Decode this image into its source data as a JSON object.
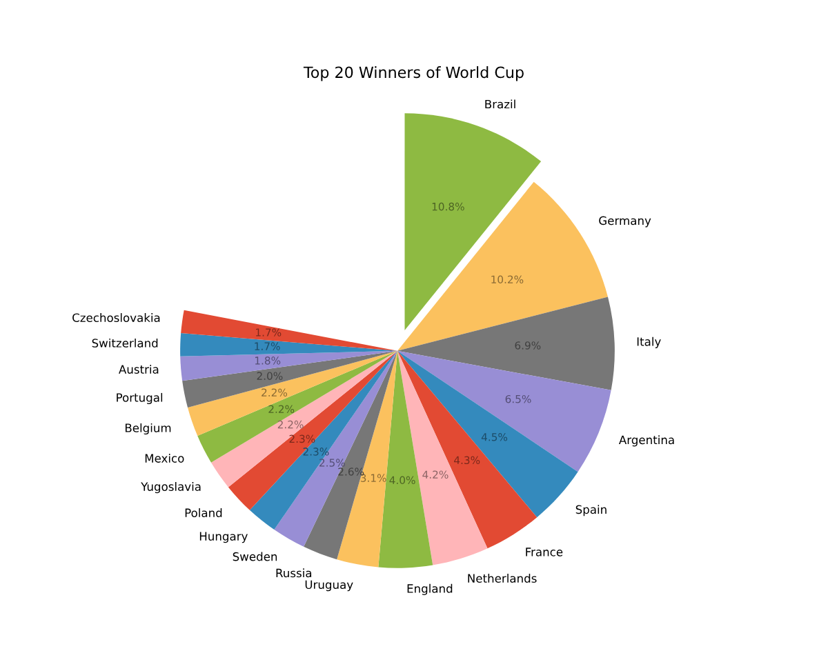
{
  "chart_data": {
    "type": "pie",
    "title": "Top 20 Winners of World Cup",
    "categories": [
      "Brazil",
      "Germany",
      "Italy",
      "Argentina",
      "Spain",
      "France",
      "Netherlands",
      "England",
      "Uruguay",
      "Russia",
      "Sweden",
      "Hungary",
      "Poland",
      "Yugoslavia",
      "Mexico",
      "Belgium",
      "Portugal",
      "Austria",
      "Switzerland",
      "Czechoslovakia"
    ],
    "values": [
      10.8,
      10.2,
      6.9,
      6.5,
      4.5,
      4.3,
      4.2,
      4.0,
      3.1,
      2.6,
      2.5,
      2.3,
      2.3,
      2.2,
      2.2,
      2.2,
      2.0,
      1.8,
      1.7,
      1.7
    ],
    "value_labels": [
      "10.8%",
      "10.2%",
      "6.9%",
      "6.5%",
      "4.5%",
      "4.3%",
      "4.2%",
      "4.0%",
      "3.1%",
      "2.6%",
      "2.5%",
      "2.3%",
      "2.3%",
      "2.2%",
      "2.2%",
      "2.2%",
      "2.0%",
      "1.8%",
      "1.7%",
      "1.7%"
    ],
    "colors": [
      "#8eba42",
      "#fbc15e",
      "#777777",
      "#988ed5",
      "#348abd",
      "#e24a33",
      "#ffb5b8",
      "#8eba42",
      "#fbc15e",
      "#777777",
      "#988ed5",
      "#348abd",
      "#e24a33",
      "#ffb5b8",
      "#8eba42",
      "#fbc15e",
      "#777777",
      "#988ed5",
      "#348abd",
      "#e24a33"
    ]
  }
}
